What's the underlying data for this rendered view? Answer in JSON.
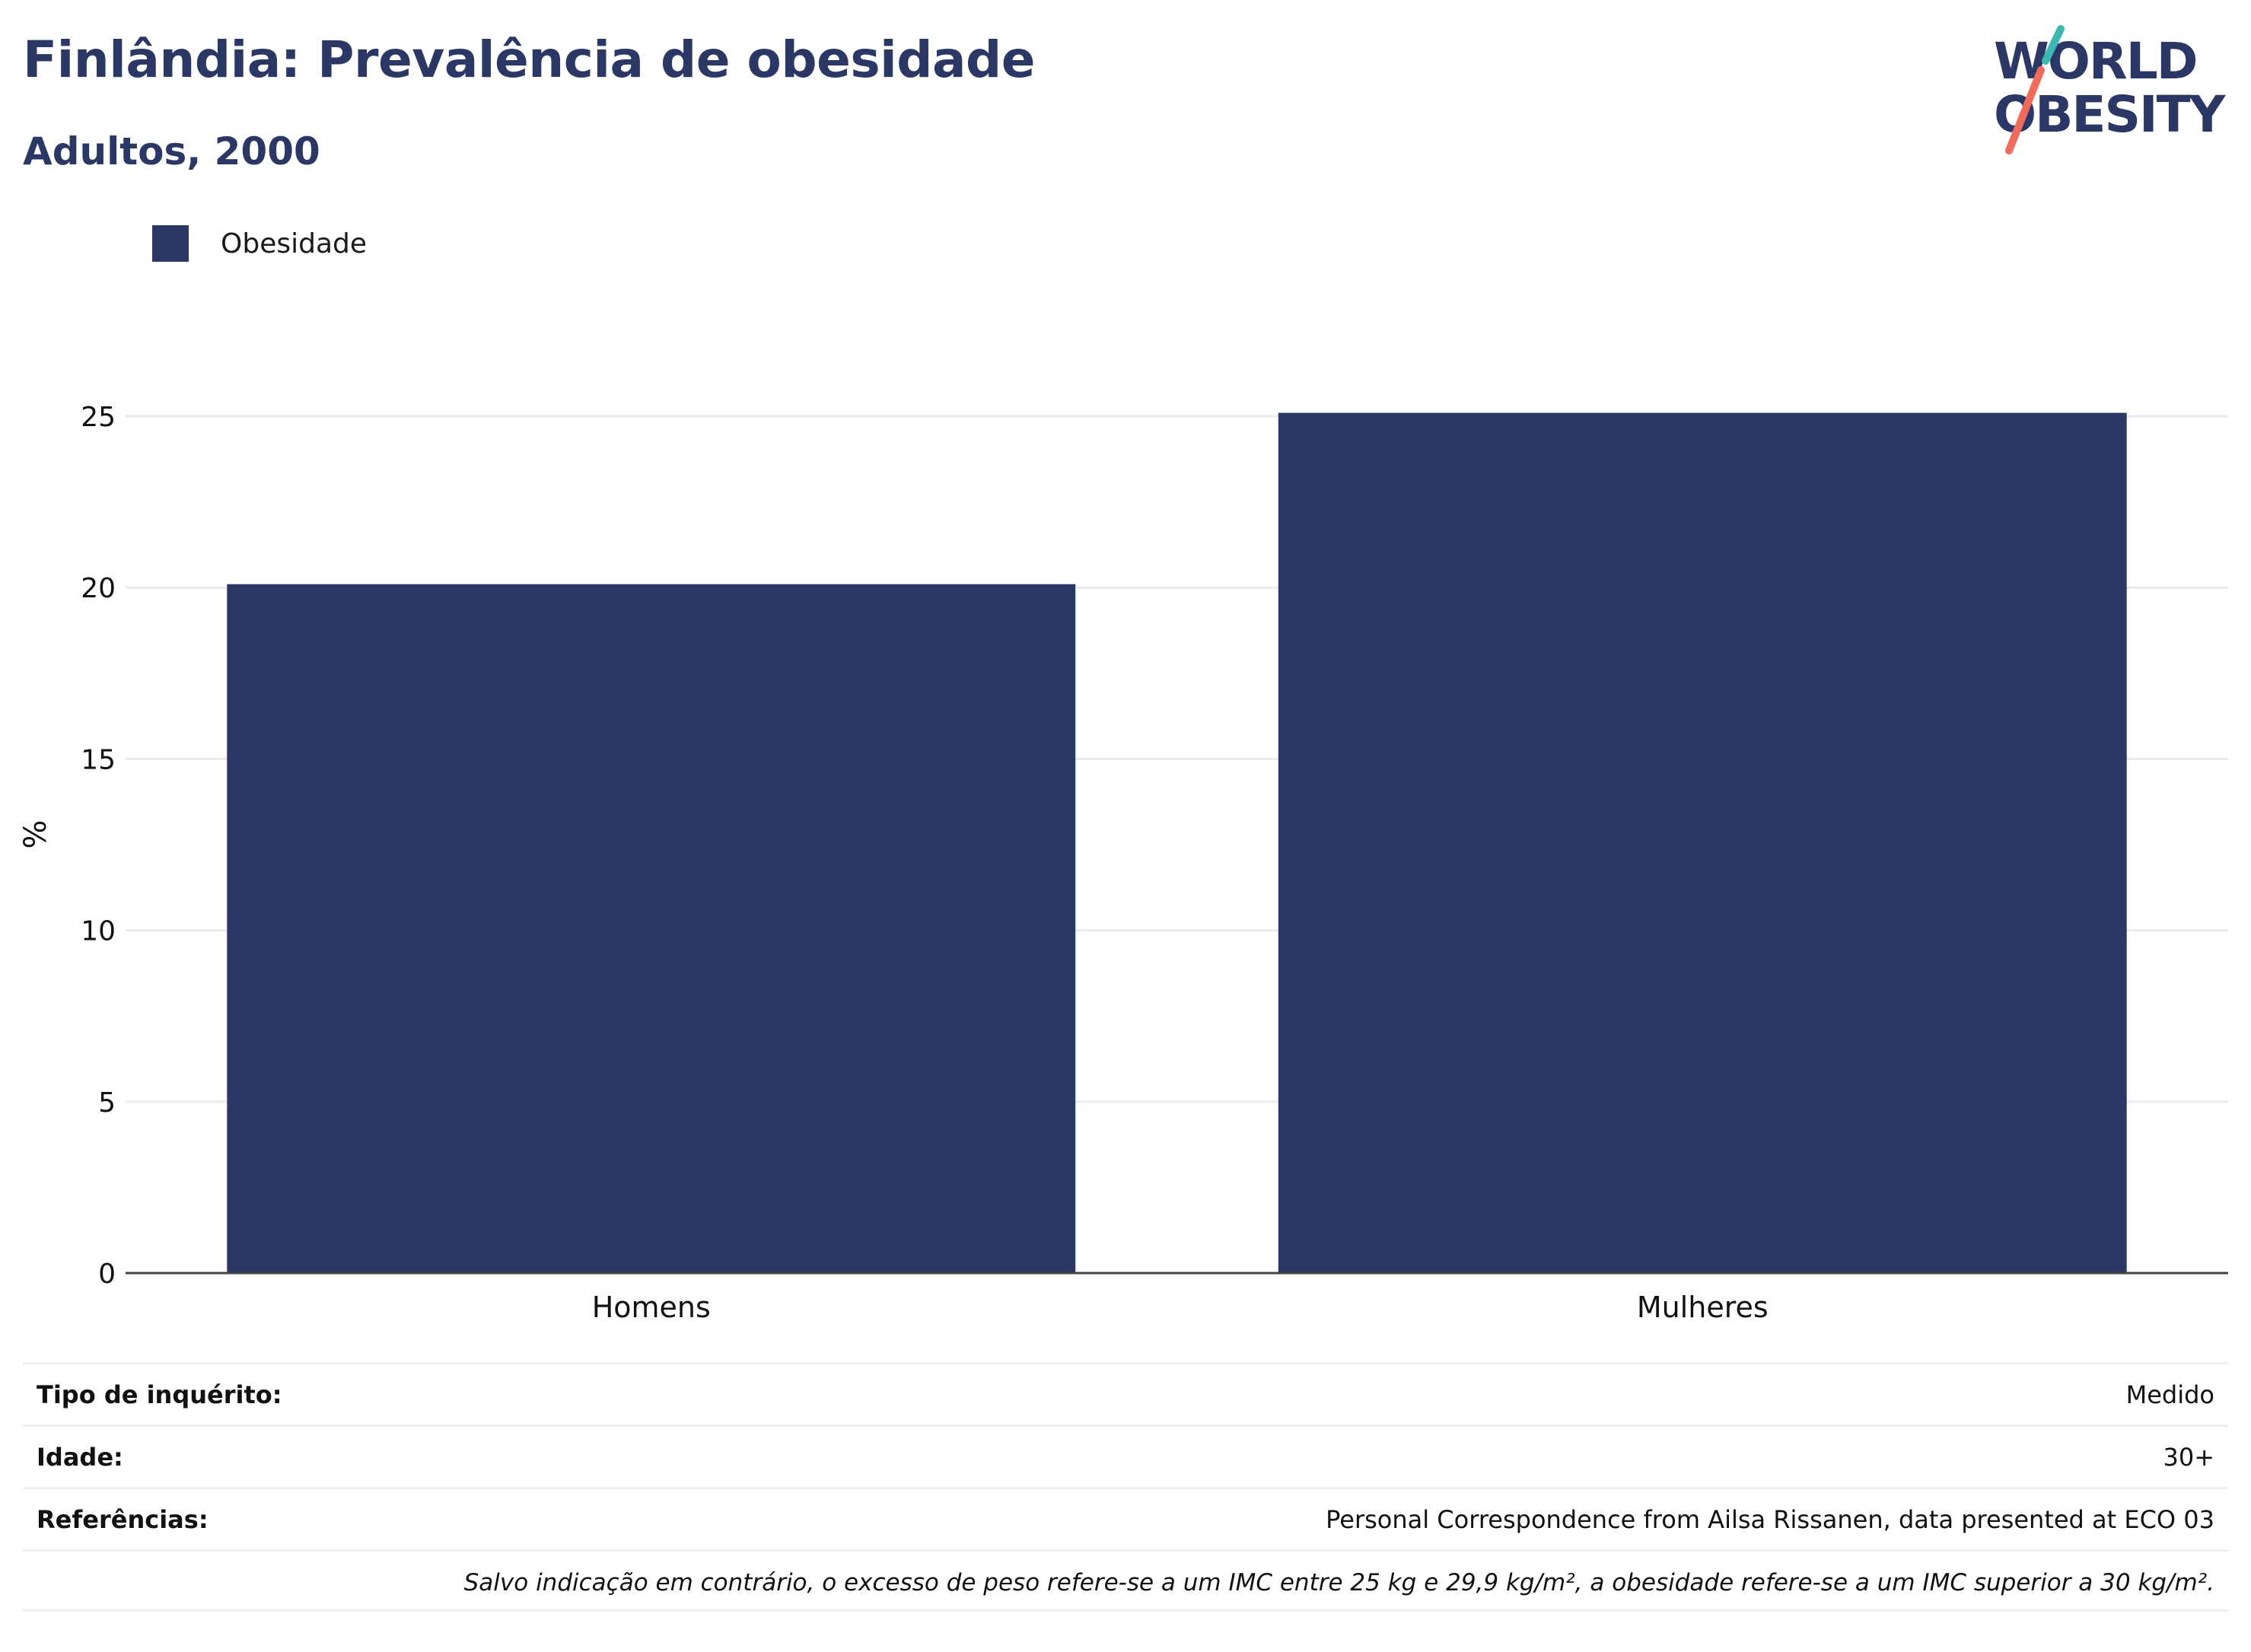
{
  "header": {
    "title": "Finlândia: Prevalência de obesidade",
    "subtitle": "Adultos, 2000"
  },
  "logo": {
    "text_line1": "WORLD",
    "text_line2": "OBESITY",
    "colors": {
      "text": "#2b3764",
      "slash_top": "#3bb8b4",
      "slash_bottom": "#f06b5c"
    }
  },
  "legend": {
    "items": [
      {
        "label": "Obesidade",
        "color": "#2b3764"
      }
    ]
  },
  "chart_data": {
    "type": "bar",
    "categories": [
      "Homens",
      "Mulheres"
    ],
    "series": [
      {
        "name": "Obesidade",
        "values": [
          20.1,
          25.1
        ],
        "color": "#2b3764"
      }
    ],
    "ylabel": "%",
    "ylim": [
      0,
      25.6
    ],
    "yticks": [
      0,
      5,
      10,
      15,
      20,
      25
    ],
    "grid": true,
    "legend_position": "top-left"
  },
  "info": {
    "rows": [
      {
        "label": "Tipo de inquérito:",
        "value": "Medido"
      },
      {
        "label": "Idade:",
        "value": "30+"
      },
      {
        "label": "Referências:",
        "value": "Personal Correspondence from Ailsa Rissanen, data presented at ECO 03"
      }
    ],
    "note": "Salvo indicação em contrário, o excesso de peso refere-se a um IMC entre 25 kg e 29,9 kg/m², a obesidade refere-se a um IMC superior a 30 kg/m²."
  }
}
